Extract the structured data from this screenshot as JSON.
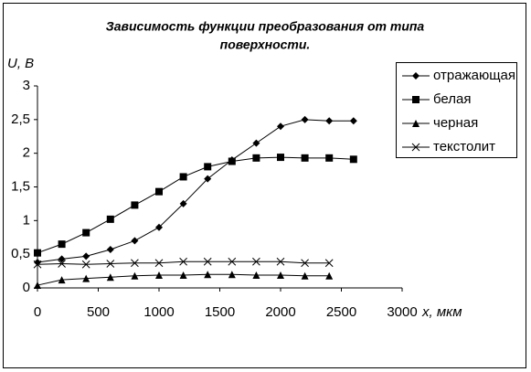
{
  "chart_data": {
    "type": "line",
    "title_lines": [
      "Зависимость функции преобразования от типа",
      "поверхности."
    ],
    "y_label": "U, B",
    "x_label": "x, мкм",
    "x": [
      0,
      200,
      400,
      600,
      800,
      1000,
      1200,
      1400,
      1600,
      1800,
      2000,
      2200,
      2400,
      2600
    ],
    "xlim": [
      0,
      3000
    ],
    "xticks": [
      0,
      500,
      1000,
      1500,
      2000,
      2500,
      3000
    ],
    "ylim": [
      0,
      3
    ],
    "yticks": [
      0,
      {
        "value": 0.5,
        "label": "0,5"
      },
      1,
      {
        "value": 1.5,
        "label": "1,5"
      },
      2,
      {
        "value": 2.5,
        "label": "2,5"
      },
      3
    ],
    "series": [
      {
        "name": "отражающая",
        "color": "#000000",
        "marker": "diamond",
        "values": [
          0.38,
          0.43,
          0.47,
          0.57,
          0.7,
          0.9,
          1.25,
          1.62,
          1.9,
          2.15,
          2.4,
          2.5,
          2.48,
          2.48
        ]
      },
      {
        "name": "белая",
        "color": "#000000",
        "marker": "square",
        "values": [
          0.52,
          0.65,
          0.82,
          1.02,
          1.23,
          1.43,
          1.65,
          1.8,
          1.88,
          1.93,
          1.94,
          1.93,
          1.93,
          1.91
        ]
      },
      {
        "name": "черная",
        "color": "#000000",
        "marker": "triangle",
        "values": [
          0.04,
          0.12,
          0.14,
          0.16,
          0.18,
          0.19,
          0.19,
          0.2,
          0.2,
          0.19,
          0.19,
          0.18,
          0.18,
          null
        ]
      },
      {
        "name": "текстолит",
        "color": "#000000",
        "marker": "cross",
        "values": [
          0.35,
          0.36,
          0.35,
          0.36,
          0.37,
          0.37,
          0.39,
          0.39,
          0.39,
          0.39,
          0.39,
          0.37,
          0.37,
          null
        ]
      }
    ]
  }
}
